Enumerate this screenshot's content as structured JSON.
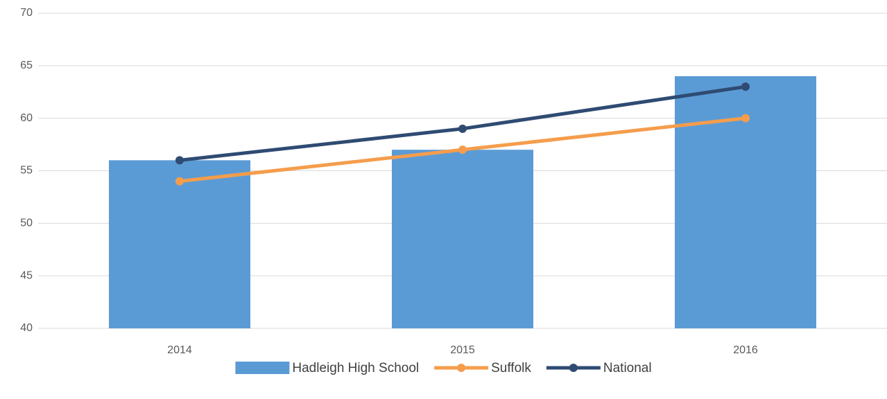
{
  "chart_data": {
    "type": "combo",
    "categories": [
      "2014",
      "2015",
      "2016"
    ],
    "series": [
      {
        "name": "Hadleigh High School",
        "type": "bar",
        "color": "#5b9bd5",
        "values": [
          56,
          57,
          64
        ]
      },
      {
        "name": "Suffolk",
        "type": "line",
        "color": "#f59d4c",
        "values": [
          54,
          57,
          60
        ]
      },
      {
        "name": "National",
        "type": "line",
        "color": "#2f4b73",
        "values": [
          56,
          59,
          63
        ]
      }
    ],
    "ylim": [
      40,
      70
    ],
    "yticks": [
      40,
      45,
      50,
      55,
      60,
      65,
      70
    ],
    "grid": true,
    "legend": "bottom"
  }
}
